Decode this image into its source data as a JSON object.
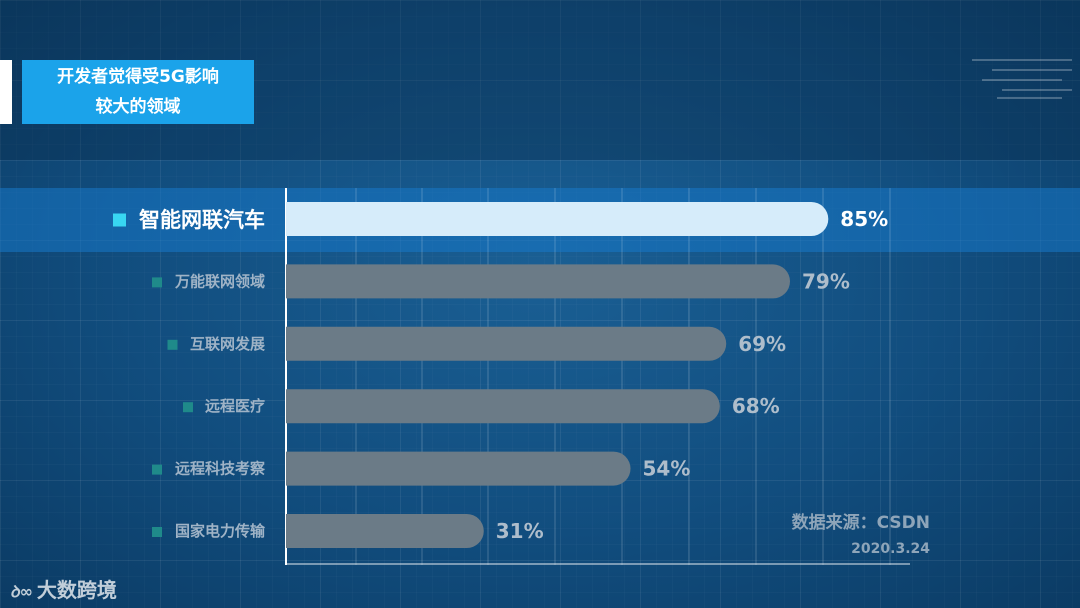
{
  "title": {
    "line1": "开发者觉得受5G影响",
    "line2": "较大的领域"
  },
  "chart_data": {
    "type": "bar",
    "orientation": "horizontal",
    "categories": [
      "智能网联汽车",
      "万能联网领域",
      "互联网发展",
      "远程医疗",
      "远程科技考察",
      "国家电力传输"
    ],
    "values": [
      85,
      79,
      69,
      68,
      54,
      31
    ],
    "value_labels": [
      "85%",
      "79%",
      "69%",
      "68%",
      "54%",
      "31%"
    ],
    "highlighted": "智能网联汽车",
    "xlim": [
      0,
      100
    ],
    "grid": true,
    "colors": {
      "highlight_bar": "#d6ecfa",
      "bar": "#6b7b87",
      "marker_active": "#38d6f2",
      "marker": "#1f8a8a"
    }
  },
  "source": {
    "name": "数据来源：CSDN",
    "date": "2020.3.24"
  },
  "watermark": {
    "logo": "icon-logo",
    "text": "大数跨境"
  }
}
